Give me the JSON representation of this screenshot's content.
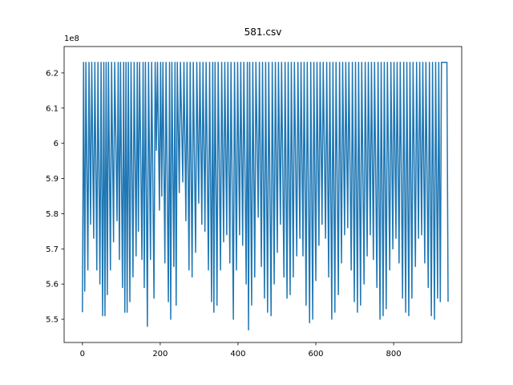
{
  "chart_data": {
    "type": "line",
    "title": "581.csv",
    "y_offset_label": "1e8",
    "x": [
      0,
      3,
      6,
      9,
      14,
      17,
      21,
      24,
      29,
      32,
      37,
      40,
      45,
      48,
      52,
      55,
      58,
      61,
      64,
      67,
      72,
      75,
      80,
      83,
      89,
      92,
      95,
      98,
      103,
      106,
      109,
      112,
      115,
      118,
      122,
      125,
      130,
      133,
      138,
      141,
      144,
      147,
      153,
      156,
      159,
      162,
      167,
      170,
      175,
      178,
      184,
      187,
      190,
      193,
      198,
      201,
      204,
      207,
      212,
      215,
      221,
      224,
      227,
      230,
      235,
      238,
      241,
      244,
      249,
      252,
      258,
      261,
      266,
      269,
      274,
      277,
      282,
      285,
      291,
      294,
      299,
      302,
      307,
      310,
      315,
      318,
      324,
      327,
      332,
      335,
      338,
      341,
      346,
      349,
      355,
      358,
      363,
      366,
      371,
      374,
      379,
      382,
      388,
      391,
      396,
      399,
      404,
      407,
      412,
      415,
      421,
      424,
      427,
      430,
      435,
      438,
      443,
      446,
      452,
      455,
      460,
      463,
      468,
      471,
      476,
      479,
      485,
      488,
      493,
      496,
      501,
      504,
      509,
      512,
      518,
      521,
      526,
      529,
      534,
      537,
      542,
      545,
      551,
      554,
      559,
      562,
      567,
      570,
      575,
      578,
      584,
      587,
      592,
      595,
      600,
      603,
      608,
      611,
      616,
      619,
      625,
      628,
      633,
      636,
      641,
      644,
      649,
      652,
      658,
      661,
      666,
      669,
      674,
      677,
      682,
      685,
      691,
      694,
      699,
      702,
      707,
      710,
      715,
      718,
      724,
      727,
      732,
      735,
      740,
      743,
      748,
      751,
      757,
      760,
      765,
      768,
      773,
      776,
      781,
      784,
      790,
      793,
      798,
      801,
      806,
      809,
      814,
      817,
      823,
      826,
      831,
      834,
      839,
      842,
      847,
      850,
      856,
      859,
      864,
      867,
      872,
      875,
      880,
      883,
      889,
      892,
      897,
      900,
      905,
      908,
      913,
      916,
      920,
      923,
      937,
      940
    ],
    "series": [
      {
        "color": "#1f77b4",
        "values": [
          5.52,
          6.23,
          5.58,
          6.23,
          5.64,
          6.23,
          5.77,
          6.23,
          5.73,
          6.23,
          5.64,
          6.23,
          5.6,
          6.23,
          5.51,
          6.23,
          5.51,
          6.23,
          5.57,
          6.23,
          5.64,
          6.23,
          5.72,
          6.23,
          5.78,
          6.23,
          5.67,
          6.23,
          5.59,
          6.23,
          5.52,
          6.23,
          5.52,
          6.23,
          5.55,
          6.23,
          5.62,
          6.23,
          5.68,
          6.23,
          5.75,
          6.23,
          5.67,
          6.23,
          5.59,
          6.23,
          5.48,
          6.23,
          5.67,
          6.23,
          5.56,
          6.23,
          5.98,
          6.23,
          5.81,
          6.23,
          5.85,
          6.23,
          5.66,
          6.23,
          5.55,
          6.23,
          5.5,
          6.23,
          5.65,
          6.23,
          5.54,
          6.23,
          5.86,
          6.23,
          5.89,
          6.23,
          5.78,
          6.23,
          5.64,
          6.23,
          5.62,
          6.23,
          5.69,
          6.23,
          5.83,
          6.23,
          5.77,
          6.23,
          5.75,
          6.23,
          5.64,
          6.23,
          5.55,
          6.23,
          5.52,
          6.23,
          5.54,
          6.23,
          5.64,
          6.23,
          5.72,
          6.23,
          5.74,
          6.23,
          5.66,
          6.23,
          5.5,
          6.23,
          5.64,
          6.23,
          5.74,
          6.23,
          5.71,
          6.23,
          5.6,
          6.23,
          5.47,
          6.23,
          5.54,
          6.23,
          5.62,
          6.23,
          5.79,
          6.23,
          5.65,
          6.23,
          5.56,
          6.23,
          5.52,
          6.23,
          5.51,
          6.23,
          5.6,
          6.23,
          5.69,
          6.23,
          5.77,
          6.23,
          5.62,
          6.23,
          5.56,
          6.23,
          5.57,
          6.23,
          5.62,
          6.23,
          5.68,
          6.23,
          5.73,
          6.23,
          5.68,
          6.23,
          5.54,
          6.23,
          5.49,
          6.23,
          5.5,
          6.23,
          5.61,
          6.23,
          5.71,
          6.23,
          5.77,
          6.23,
          5.73,
          6.23,
          5.62,
          6.23,
          5.5,
          6.23,
          5.52,
          6.23,
          5.57,
          6.23,
          5.66,
          6.23,
          5.74,
          6.23,
          5.76,
          6.23,
          5.64,
          6.23,
          5.55,
          6.23,
          5.52,
          6.23,
          5.54,
          6.23,
          5.6,
          6.23,
          5.68,
          6.23,
          5.74,
          6.23,
          5.67,
          6.23,
          5.59,
          6.23,
          5.5,
          6.23,
          5.51,
          6.23,
          5.53,
          6.23,
          5.64,
          6.23,
          5.7,
          6.23,
          5.73,
          6.23,
          5.66,
          6.23,
          5.56,
          6.23,
          5.52,
          6.23,
          5.51,
          6.23,
          5.56,
          6.23,
          5.65,
          6.23,
          5.73,
          6.23,
          5.74,
          6.23,
          5.66,
          6.23,
          5.59,
          6.23,
          5.51,
          6.23,
          5.5,
          6.23,
          5.56,
          6.23,
          5.55,
          6.23,
          6.23,
          5.55
        ]
      }
    ],
    "xlim": [
      -47,
      975
    ],
    "ylim": [
      5.434,
      6.275
    ],
    "xticks": [
      0,
      200,
      400,
      600,
      800
    ],
    "yticks": [
      5.5,
      5.6,
      5.7,
      5.8,
      5.9,
      6.0,
      6.1,
      6.2
    ]
  }
}
